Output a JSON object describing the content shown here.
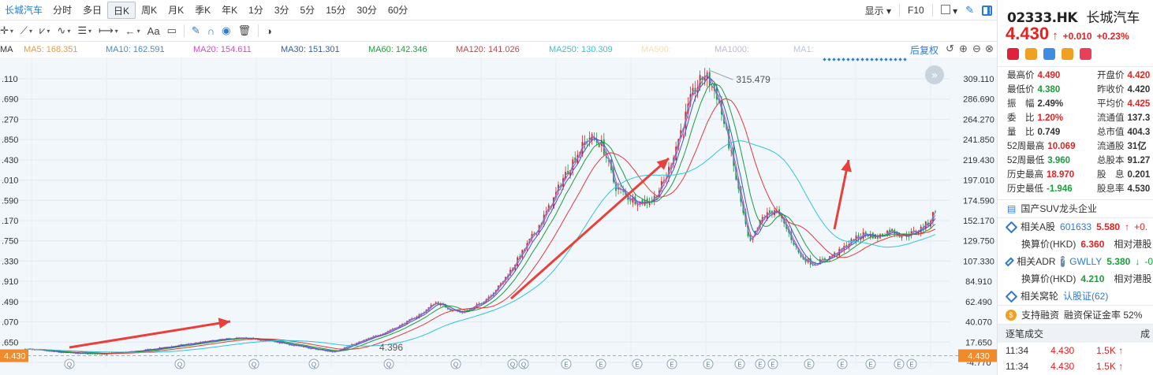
{
  "topbar": {
    "stock_tab": "长城汽车",
    "periods": [
      "分时",
      "多日",
      "日K",
      "周K",
      "月K",
      "季K",
      "年K",
      "1分",
      "3分",
      "5分",
      "15分",
      "30分",
      "60分"
    ],
    "active_period": "日K",
    "display_label": "显示",
    "f10_label": "F10"
  },
  "toolbar": {
    "text_tool": "Aa"
  },
  "ma_row": {
    "ma_prefix": "MA",
    "ma5": "MA5: 168.351",
    "ma10": "MA10: 162.591",
    "ma20": "MA20: 154.611",
    "ma30": "MA30: 151.301",
    "ma60": "MA60: 142.346",
    "ma120": "MA120: 141.026",
    "ma250": "MA250: 130.309",
    "ma500": "MA500:",
    "ma1000": "MA1000:",
    "ma1": "MA1:",
    "adjust_label": "后复权"
  },
  "colors": {
    "ma5": "#f39a2b",
    "ma10": "#3d8fd6",
    "ma20": "#d64cc8",
    "ma30": "#2a5fb8",
    "ma60": "#1f9b3b",
    "ma120": "#e03a3a",
    "ma250": "#2fc6d8",
    "up": "#e32222",
    "down": "#1a9d3a",
    "accent": "#2a7ad6"
  },
  "chart_data": {
    "type": "candlestick",
    "y_ticks": [
      "309.110",
      "286.690",
      "264.270",
      "241.850",
      "219.430",
      "197.010",
      "174.590",
      "152.170",
      "129.750",
      "107.330",
      "84.910",
      "62.490",
      "40.070",
      "17.650",
      "-4.770"
    ],
    "y_ticks_left": [
      ".110",
      ".690",
      ".270",
      ".850",
      ".430",
      ".010",
      ".590",
      ".170",
      ".750",
      ".330",
      ".910",
      ".490",
      ".070",
      ".650"
    ],
    "ylim": [
      -4.77,
      309.11
    ],
    "max_label": "315.479",
    "min_label": "4.396",
    "current_price_label": "4.430",
    "event_markers": [
      "Q",
      "Q",
      "Q",
      "Q",
      "Q",
      "Q",
      "Q",
      "Q",
      "E",
      "E",
      "E",
      "E",
      "E",
      "E",
      "E",
      "E",
      "E",
      "E",
      "E",
      "E"
    ],
    "price_path": [
      [
        0,
        10
      ],
      [
        3,
        8
      ],
      [
        6,
        6
      ],
      [
        9,
        5
      ],
      [
        12,
        5
      ],
      [
        15,
        6
      ],
      [
        18,
        8
      ],
      [
        21,
        11
      ],
      [
        24,
        14
      ],
      [
        27,
        17
      ],
      [
        30,
        20
      ],
      [
        33,
        22
      ],
      [
        36,
        21
      ],
      [
        39,
        18
      ],
      [
        42,
        14
      ],
      [
        45,
        10
      ],
      [
        48,
        7
      ],
      [
        50,
        12
      ],
      [
        53,
        20
      ],
      [
        56,
        28
      ],
      [
        59,
        38
      ],
      [
        62,
        50
      ],
      [
        64,
        62
      ],
      [
        66,
        55
      ],
      [
        68,
        50
      ],
      [
        70,
        56
      ],
      [
        72,
        66
      ],
      [
        74,
        80
      ],
      [
        76,
        100
      ],
      [
        78,
        122
      ],
      [
        80,
        145
      ],
      [
        82,
        170
      ],
      [
        84,
        200
      ],
      [
        86,
        225
      ],
      [
        88,
        245
      ],
      [
        90,
        236
      ],
      [
        91,
        215
      ],
      [
        92,
        190
      ],
      [
        94,
        178
      ],
      [
        96,
        172
      ],
      [
        98,
        176
      ],
      [
        100,
        200
      ],
      [
        102,
        245
      ],
      [
        104,
        290
      ],
      [
        106,
        315
      ],
      [
        108,
        290
      ],
      [
        110,
        230
      ],
      [
        112,
        160
      ],
      [
        113,
        125
      ],
      [
        115,
        155
      ],
      [
        117,
        165
      ],
      [
        119,
        140
      ],
      [
        121,
        112
      ],
      [
        123,
        104
      ],
      [
        125,
        110
      ],
      [
        127,
        118
      ],
      [
        129,
        130
      ],
      [
        131,
        138
      ],
      [
        133,
        134
      ],
      [
        135,
        142
      ],
      [
        137,
        135
      ],
      [
        139,
        140
      ],
      [
        141,
        150
      ],
      [
        142,
        165
      ]
    ],
    "x_domain": [
      0,
      142
    ]
  },
  "right": {
    "code": "02333.HK",
    "name": "长城汽车",
    "price": "4.430",
    "price_arrow": "↑",
    "change": "+0.010",
    "change_pct": "+0.23%",
    "stats_left": [
      {
        "label": "最高价",
        "value": "4.490",
        "tone": "up"
      },
      {
        "label": "最低价",
        "value": "4.380",
        "tone": "dn"
      },
      {
        "label": "振　幅",
        "value": "2.49%",
        "tone": "dk"
      },
      {
        "label": "委　比",
        "value": "1.20%",
        "tone": "up"
      },
      {
        "label": "量　比",
        "value": "0.749",
        "tone": "dk"
      },
      {
        "label": "52周最高",
        "value": "10.069",
        "tone": "up"
      },
      {
        "label": "52周最低",
        "value": "3.960",
        "tone": "dn"
      },
      {
        "label": "历史最高",
        "value": "18.970",
        "tone": "up"
      },
      {
        "label": "历史最低",
        "value": "-1.946",
        "tone": "dn"
      }
    ],
    "stats_right": [
      {
        "label": "开盘价",
        "value": "4.420",
        "tone": "up"
      },
      {
        "label": "昨收价",
        "value": "4.420",
        "tone": "dk"
      },
      {
        "label": "平均价",
        "value": "4.425",
        "tone": "up"
      },
      {
        "label": "流通值",
        "value": "137.3",
        "tone": "dk"
      },
      {
        "label": "总市值",
        "value": "404.3",
        "tone": "dk"
      },
      {
        "label": "流通股",
        "value": "31亿",
        "tone": "dk"
      },
      {
        "label": "总股本",
        "value": "91.27",
        "tone": "dk"
      },
      {
        "label": "股　息",
        "value": "0.201",
        "tone": "dk"
      },
      {
        "label": "股息率",
        "value": "4.530",
        "tone": "dk"
      }
    ],
    "concept_tag": "国产SUV龙头企业",
    "a_share_label": "相关A股",
    "a_share_code": "601633",
    "a_share_price": "5.580",
    "a_share_arrow": "↑",
    "a_share_chg": "+0.",
    "calc_price_label": "换算价(HKD)",
    "calc_price_a": "6.360",
    "rel_hk_label": "相对港股",
    "adr_label": "相关ADR",
    "adr_code": "GWLLY",
    "adr_price": "5.380",
    "adr_arrow": "↓",
    "adr_chg": "-0",
    "calc_price_adr": "4.210",
    "warrant_label": "相关窝轮",
    "warrant_link": "认股证(62)",
    "margin_label": "支持融资",
    "margin_rate": "融资保证金率 52%",
    "trades_title": "逐笔成交",
    "trades_col": "成",
    "trades": [
      {
        "time": "11:34",
        "price": "4.430",
        "vol": "1.5K",
        "arrow": "↑"
      },
      {
        "time": "11:34",
        "price": "4.430",
        "vol": "1.5K",
        "arrow": "↑"
      }
    ]
  }
}
